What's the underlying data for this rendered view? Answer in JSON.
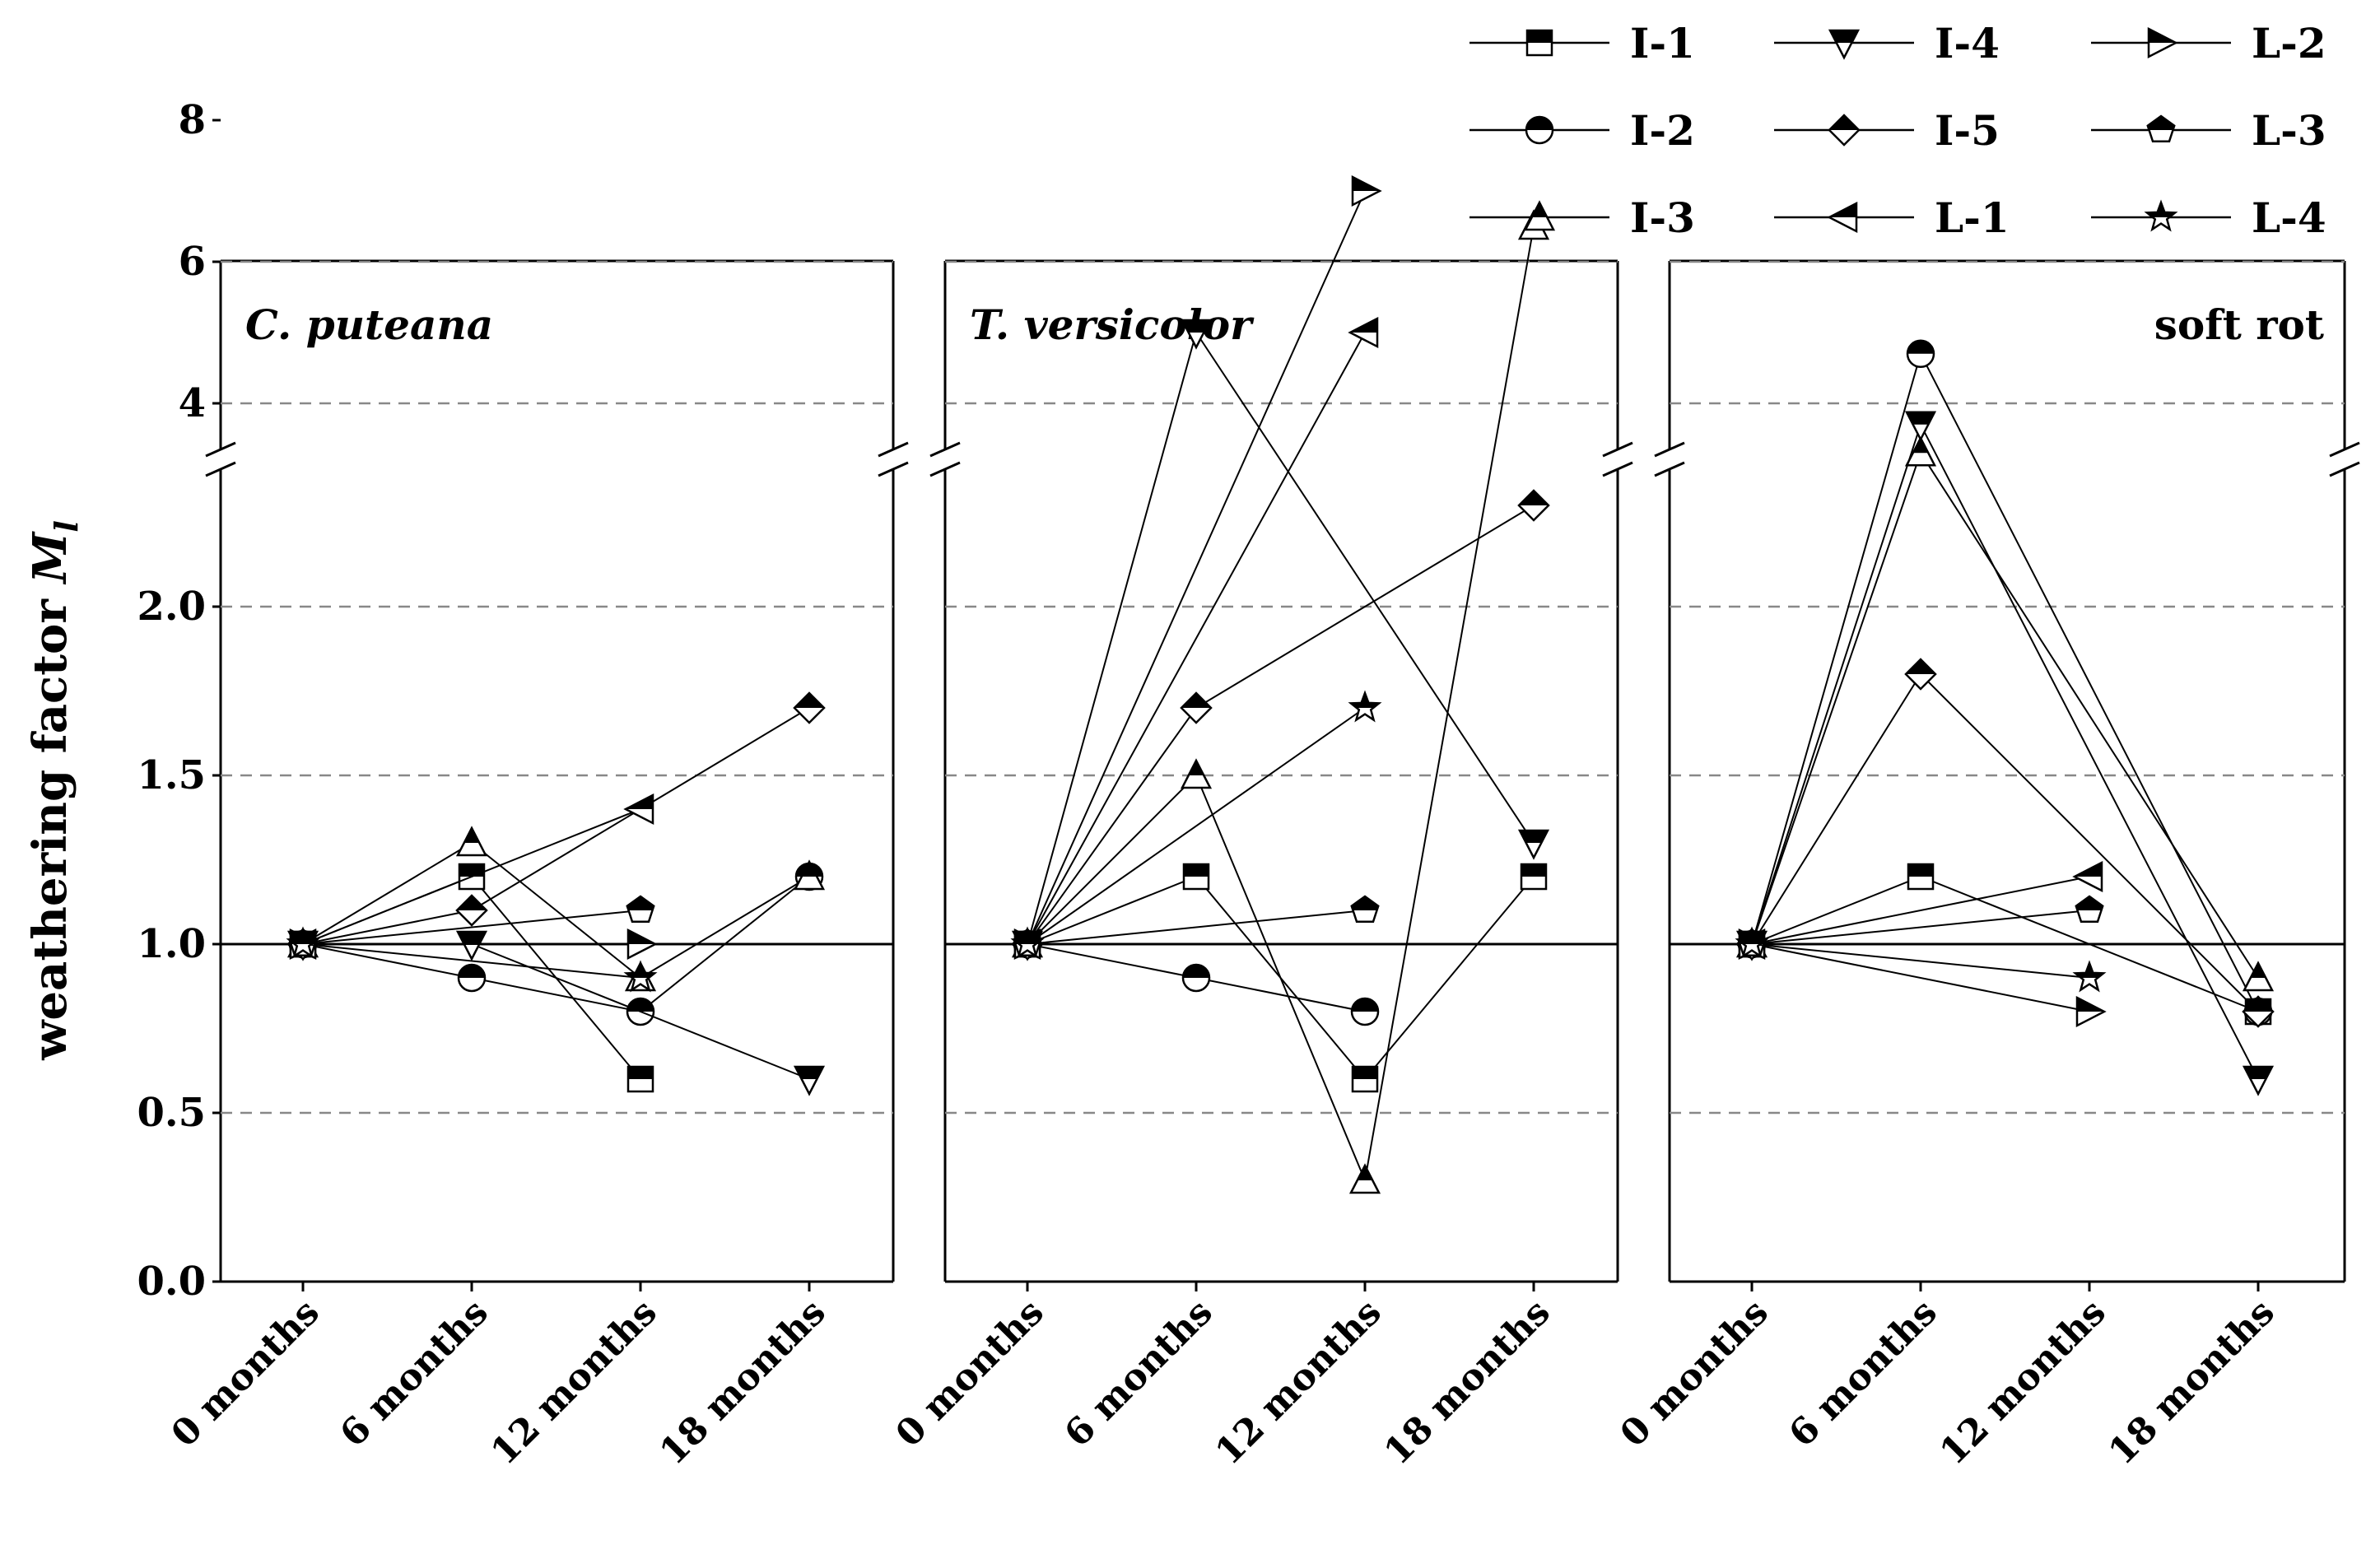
{
  "chart_data": {
    "type": "line",
    "ylabel": "weathering factor",
    "ylabel_symbol": "M",
    "ylabel_subscript": "l",
    "categories": [
      "0 months",
      "6 months",
      "12 months",
      "18 months"
    ],
    "y_axis": {
      "lower_range": [
        0,
        2.4
      ],
      "upper_range": [
        2.6,
        8
      ],
      "lower_ticks": [
        "0.0",
        "0.5",
        "1.0",
        "1.5",
        "2.0"
      ],
      "upper_ticks": [
        "4",
        "6",
        "8"
      ],
      "axis_break": true,
      "grid": "dashed",
      "reference_line": 1.0
    },
    "legend": {
      "placement": "top-right",
      "entries": [
        {
          "name": "I-1",
          "marker": "square"
        },
        {
          "name": "I-4",
          "marker": "triangle-down"
        },
        {
          "name": "L-2",
          "marker": "triangle-right"
        },
        {
          "name": "I-2",
          "marker": "circle"
        },
        {
          "name": "I-5",
          "marker": "diamond"
        },
        {
          "name": "L-3",
          "marker": "pentagon"
        },
        {
          "name": "I-3",
          "marker": "triangle-up"
        },
        {
          "name": "L-1",
          "marker": "triangle-left"
        },
        {
          "name": "L-4",
          "marker": "star"
        }
      ]
    },
    "panels": [
      {
        "label": "C. puteana",
        "italic": true,
        "series": [
          {
            "name": "I-1",
            "values": [
              1.0,
              1.2,
              0.6,
              null
            ]
          },
          {
            "name": "I-2",
            "values": [
              1.0,
              0.9,
              0.8,
              1.2
            ]
          },
          {
            "name": "I-3",
            "values": [
              1.0,
              1.3,
              0.9,
              1.2
            ]
          },
          {
            "name": "I-4",
            "values": [
              1.0,
              1.0,
              null,
              0.6
            ]
          },
          {
            "name": "I-5",
            "values": [
              1.0,
              1.1,
              null,
              1.7
            ]
          },
          {
            "name": "L-1",
            "values": [
              1.0,
              null,
              1.4,
              null
            ]
          },
          {
            "name": "L-2",
            "values": [
              1.0,
              null,
              1.0,
              null
            ]
          },
          {
            "name": "L-3",
            "values": [
              1.0,
              null,
              1.1,
              null
            ]
          },
          {
            "name": "L-4",
            "values": [
              1.0,
              null,
              0.9,
              null
            ]
          }
        ]
      },
      {
        "label": "T. versicolor",
        "italic": true,
        "series": [
          {
            "name": "I-1",
            "values": [
              1.0,
              1.2,
              0.6,
              1.2
            ]
          },
          {
            "name": "I-2",
            "values": [
              1.0,
              0.9,
              0.8,
              null
            ]
          },
          {
            "name": "I-3",
            "values": [
              1.0,
              1.5,
              0.3,
              6.5
            ]
          },
          {
            "name": "I-4",
            "values": [
              1.0,
              5.0,
              null,
              1.3
            ]
          },
          {
            "name": "I-5",
            "values": [
              1.0,
              1.7,
              null,
              2.3
            ]
          },
          {
            "name": "L-1",
            "values": [
              1.0,
              null,
              5.0,
              null
            ]
          },
          {
            "name": "L-2",
            "values": [
              1.0,
              null,
              7.0,
              null
            ]
          },
          {
            "name": "L-3",
            "values": [
              1.0,
              null,
              1.1,
              null
            ]
          },
          {
            "name": "L-4",
            "values": [
              1.0,
              null,
              1.7,
              null
            ]
          }
        ]
      },
      {
        "label": "soft rot",
        "italic": false,
        "series": [
          {
            "name": "I-1",
            "values": [
              1.0,
              1.2,
              null,
              0.8
            ]
          },
          {
            "name": "I-2",
            "values": [
              1.0,
              4.7,
              null,
              0.8
            ]
          },
          {
            "name": "I-3",
            "values": [
              1.0,
              3.3,
              null,
              0.9
            ]
          },
          {
            "name": "I-4",
            "values": [
              1.0,
              3.7,
              null,
              0.6
            ]
          },
          {
            "name": "I-5",
            "values": [
              1.0,
              1.8,
              null,
              0.8
            ]
          },
          {
            "name": "L-1",
            "values": [
              1.0,
              null,
              1.2,
              null
            ]
          },
          {
            "name": "L-2",
            "values": [
              1.0,
              null,
              0.8,
              null
            ]
          },
          {
            "name": "L-3",
            "values": [
              1.0,
              null,
              1.1,
              null
            ]
          },
          {
            "name": "L-4",
            "values": [
              1.0,
              null,
              0.9,
              null
            ]
          }
        ]
      }
    ]
  }
}
